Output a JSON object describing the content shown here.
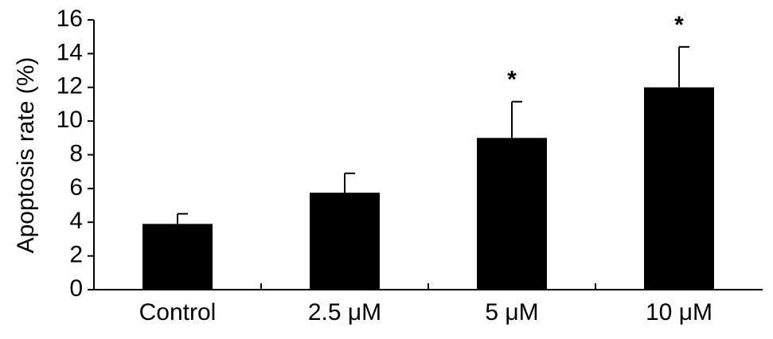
{
  "chart_data": {
    "type": "bar",
    "y_label": "Apoptosis rate (%)",
    "categories": [
      "Control",
      "2.5 μM",
      "5 μM",
      "10 μM"
    ],
    "values": [
      3.9,
      5.75,
      9.0,
      12.0
    ],
    "errors": [
      0.6,
      1.15,
      2.15,
      2.4
    ],
    "annotations": [
      null,
      null,
      "*",
      "*"
    ],
    "color": "#000000",
    "ylim": [
      0,
      16
    ],
    "yticks": [
      0,
      2,
      4,
      6,
      8,
      10,
      12,
      14,
      16
    ],
    "grid": false
  }
}
